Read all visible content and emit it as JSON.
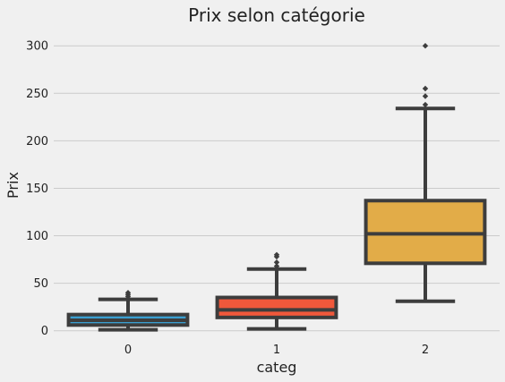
{
  "chart_data": {
    "type": "box",
    "title": "Prix selon catégorie",
    "xlabel": "categ",
    "ylabel": "Prix",
    "categories": [
      "0",
      "1",
      "2"
    ],
    "ylim": [
      -5,
      320
    ],
    "yticks": [
      0,
      50,
      100,
      150,
      200,
      250,
      300
    ],
    "grid": "horizontal",
    "series": [
      {
        "category": "0",
        "whisker_low": 1,
        "q1": 6,
        "median": 11,
        "q3": 17,
        "whisker_high": 33,
        "outliers": [
          36,
          38,
          40
        ],
        "color": "#3a9fd1"
      },
      {
        "category": "1",
        "whisker_low": 2,
        "q1": 14,
        "median": 22,
        "q3": 35,
        "whisker_high": 65,
        "outliers": [
          68,
          72,
          78,
          80
        ],
        "color": "#f0583b"
      },
      {
        "category": "2",
        "whisker_low": 31,
        "q1": 71,
        "median": 102,
        "q3": 137,
        "whisker_high": 234,
        "outliers": [
          238,
          247,
          255,
          300
        ],
        "color": "#e2ac48"
      }
    ]
  }
}
